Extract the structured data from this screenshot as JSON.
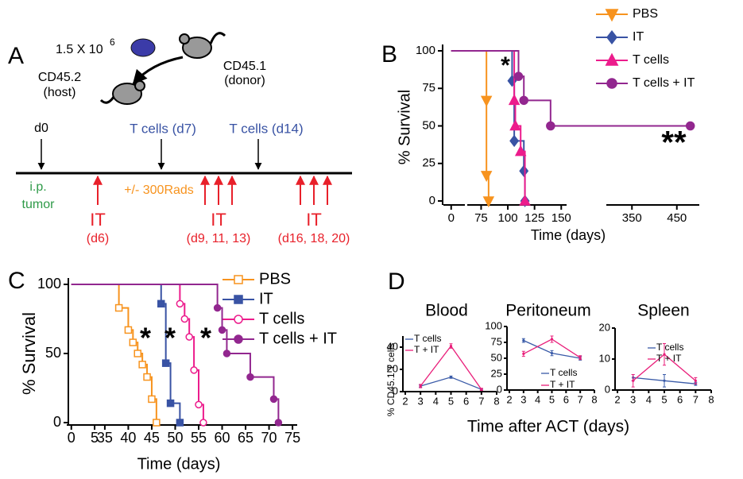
{
  "panel_labels": [
    "A",
    "B",
    "C",
    "D"
  ],
  "diagram": {
    "cells": "1.5 X 10",
    "cells_exp": "6",
    "host": [
      "CD45.2",
      "(host)"
    ],
    "donor": [
      "CD45.1",
      "(donor)"
    ],
    "day0": "d0",
    "tcells": [
      "T cells (d7)",
      "T cells (d14)"
    ],
    "tumor": [
      "i.p.",
      "tumor"
    ],
    "rads": "+/- 300Rads",
    "it": [
      {
        "label": "IT",
        "days": "(d6)"
      },
      {
        "label": "IT",
        "days": "(d9, 11, 13)"
      },
      {
        "label": "IT",
        "days": "(d16, 18, 20)"
      }
    ]
  },
  "panel_d": {
    "ylabel": "% CD45.1 T cells",
    "xlabel": "Time after ACT (days)"
  },
  "chart_data": [
    {
      "type": "survival",
      "ylabel": "% Survival",
      "xlabel": "Time (days)",
      "ylim": [
        0,
        100
      ],
      "yticks": [
        0,
        25,
        50,
        75,
        100
      ],
      "xsegments": [
        [
          -1,
          3
        ],
        [
          65,
          155
        ],
        [
          300,
          500
        ]
      ],
      "xticks": [
        0,
        75,
        100,
        125,
        150,
        350,
        450
      ],
      "annotations": [
        "*",
        "**"
      ],
      "series": [
        {
          "name": "PBS",
          "color": "#f7931e",
          "marker": "tri-down",
          "filled": true,
          "x": [
            0,
            80,
            80,
            82
          ],
          "values": [
            100,
            67,
            17,
            0
          ]
        },
        {
          "name": "IT",
          "color": "#3953a4",
          "marker": "diamond",
          "filled": true,
          "x": [
            0,
            104,
            106,
            115,
            116
          ],
          "values": [
            100,
            80,
            40,
            20,
            0
          ]
        },
        {
          "name": "T cells",
          "color": "#ec1c8c",
          "marker": "tri-up",
          "filled": true,
          "x": [
            0,
            106,
            107,
            112,
            116
          ],
          "values": [
            100,
            67,
            50,
            33,
            0
          ]
        },
        {
          "name": "T cells + IT",
          "color": "#92278f",
          "marker": "circle",
          "filled": true,
          "x": [
            0,
            110,
            115,
            140,
            480
          ],
          "values": [
            100,
            83,
            67,
            50,
            50
          ]
        }
      ]
    },
    {
      "type": "survival",
      "ylabel": "% Survival",
      "xlabel": "Time (days)",
      "ylim": [
        0,
        100
      ],
      "yticks": [
        0,
        50,
        100
      ],
      "xsegments": [
        [
          -0.3,
          5.5
        ],
        [
          34,
          76
        ]
      ],
      "xticks": [
        0,
        5,
        35,
        40,
        45,
        50,
        55,
        60,
        65,
        70,
        75
      ],
      "annotations": [
        "*",
        "*",
        "*"
      ],
      "series": [
        {
          "name": "PBS",
          "color": "#f7931e",
          "marker": "square",
          "filled": false,
          "x": [
            0,
            38,
            40,
            41,
            42,
            43,
            44,
            45,
            46
          ],
          "values": [
            100,
            83,
            67,
            58,
            50,
            42,
            33,
            17,
            0
          ]
        },
        {
          "name": "IT",
          "color": "#3953a4",
          "marker": "square",
          "filled": true,
          "x": [
            0,
            47,
            48,
            49,
            51
          ],
          "values": [
            100,
            86,
            43,
            14,
            0
          ]
        },
        {
          "name": "T cells",
          "color": "#ec1c8c",
          "marker": "circle",
          "filled": false,
          "x": [
            0,
            51,
            52,
            53,
            54,
            55,
            56
          ],
          "values": [
            100,
            86,
            75,
            62,
            38,
            13,
            0
          ]
        },
        {
          "name": "T cells + IT",
          "color": "#92278f",
          "marker": "circle",
          "filled": true,
          "x": [
            0,
            59,
            60,
            61,
            66,
            71,
            72
          ],
          "values": [
            100,
            83,
            67,
            50,
            33,
            17,
            0
          ]
        }
      ]
    },
    {
      "type": "errorline",
      "title": "Blood",
      "xlim": [
        2,
        8
      ],
      "xticks": [
        2,
        3,
        4,
        5,
        6,
        7,
        8
      ],
      "ylim": [
        0,
        50
      ],
      "yticks": [
        0,
        20,
        40
      ],
      "series": [
        {
          "name": "T cells",
          "color": "#3a5ba8",
          "x": [
            3,
            5,
            7
          ],
          "values": [
            5,
            13,
            2
          ],
          "errors": [
            1,
            1,
            0.5
          ]
        },
        {
          "name": "T + IT",
          "color": "#e91e7a",
          "x": [
            3,
            5,
            7
          ],
          "values": [
            5,
            41,
            2
          ],
          "errors": [
            1.5,
            2,
            1
          ]
        }
      ]
    },
    {
      "type": "errorline",
      "title": "Peritoneum",
      "xlim": [
        2,
        8
      ],
      "xticks": [
        2,
        3,
        4,
        5,
        6,
        7,
        8
      ],
      "ylim": [
        0,
        100
      ],
      "yticks": [
        0,
        25,
        50,
        75,
        100
      ],
      "series": [
        {
          "name": "T cells",
          "color": "#3a5ba8",
          "x": [
            3,
            5,
            7
          ],
          "values": [
            78,
            58,
            50
          ],
          "errors": [
            3,
            4,
            3
          ]
        },
        {
          "name": "T + IT",
          "color": "#e91e7a",
          "x": [
            3,
            5,
            7
          ],
          "values": [
            57,
            80,
            51
          ],
          "errors": [
            4,
            5,
            3
          ]
        }
      ]
    },
    {
      "type": "errorline",
      "title": "Spleen",
      "xlim": [
        2,
        8
      ],
      "xticks": [
        2,
        3,
        4,
        5,
        6,
        7,
        8
      ],
      "ylim": [
        0,
        20
      ],
      "yticks": [
        0,
        10,
        20
      ],
      "series": [
        {
          "name": "T cells",
          "color": "#3a5ba8",
          "x": [
            3,
            5,
            7
          ],
          "values": [
            4,
            3,
            2
          ],
          "errors": [
            1,
            2,
            0.5
          ]
        },
        {
          "name": "T + IT",
          "color": "#e91e7a",
          "x": [
            3,
            5,
            7
          ],
          "values": [
            3,
            11.5,
            3
          ],
          "errors": [
            2,
            3.5,
            1
          ]
        }
      ]
    }
  ]
}
